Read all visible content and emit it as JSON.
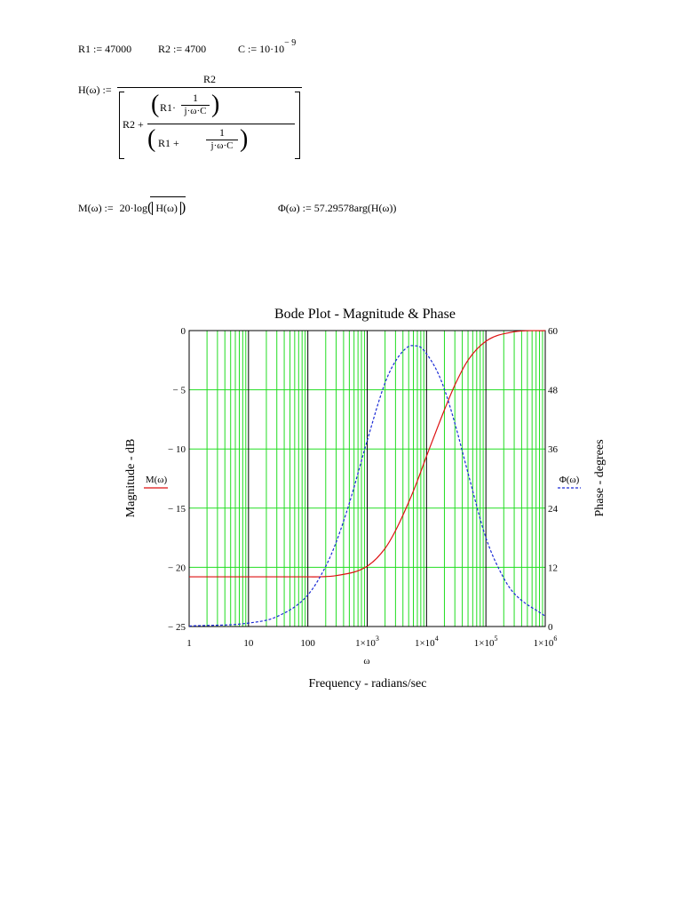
{
  "equations": {
    "r1_def": "R1 := 47000",
    "r2_def": "R2 := 4700",
    "c_def": "C := 10·10",
    "c_exp": "− 9",
    "h_lhs": "H(ω) :=",
    "h_num": "R2",
    "h_den_prefix": "R2 +",
    "h_r1": "R1·",
    "h_one": "1",
    "h_jwc": "j·ω·C",
    "h_r1_plus": "R1 +",
    "m_lhs": "M(ω) :=",
    "m_rhs_pre": "20·log",
    "m_arg": "H(ω)",
    "phi_def": "Φ(ω) := 57.29578arg(H(ω))"
  },
  "chart_data": {
    "type": "line",
    "title": "Bode Plot - Magnitude & Phase",
    "xlabel": "Frequency - radians/sec",
    "x_var": "ω",
    "ylabel_left": "Magnitude - dB",
    "ylabel_right": "Phase - degrees",
    "x_scale": "log",
    "xlim": [
      1,
      1000000
    ],
    "ylim_left": [
      -25,
      0
    ],
    "ylim_right": [
      0,
      60
    ],
    "x_ticks": [
      {
        "base": "1",
        "exp": ""
      },
      {
        "base": "10",
        "exp": ""
      },
      {
        "base": "100",
        "exp": ""
      },
      {
        "base": "1×10",
        "exp": "3"
      },
      {
        "base": "1×10",
        "exp": "4"
      },
      {
        "base": "1×10",
        "exp": "5"
      },
      {
        "base": "1×10",
        "exp": "6"
      }
    ],
    "y_ticks_left": [
      "0",
      "− 5",
      "− 10",
      "− 15",
      "− 20",
      "− 25"
    ],
    "y_ticks_right": [
      "60",
      "48",
      "36",
      "24",
      "12",
      "0"
    ],
    "grid": true,
    "series": [
      {
        "name": "M(ω)",
        "axis": "left",
        "color": "#dd1111",
        "dash": false,
        "x": [
          1,
          10,
          100,
          300,
          1000,
          2000,
          3000,
          5000,
          7000,
          10000,
          15000,
          20000,
          30000,
          50000,
          100000,
          300000,
          1000000
        ],
        "y": [
          -20.8,
          -20.8,
          -20.8,
          -20.7,
          -19.9,
          -18.4,
          -16.9,
          -14.5,
          -12.7,
          -10.6,
          -8.3,
          -6.7,
          -4.6,
          -2.5,
          -0.9,
          -0.1,
          0.0
        ]
      },
      {
        "name": "Φ(ω)",
        "axis": "right",
        "color": "#1a2ad6",
        "dash": true,
        "x": [
          1,
          10,
          30,
          100,
          200,
          300,
          500,
          1000,
          2000,
          3000,
          5000,
          6700,
          8000,
          10000,
          15000,
          20000,
          30000,
          50000,
          100000,
          200000,
          300000,
          1000000
        ],
        "y": [
          0.1,
          0.7,
          2.0,
          6.4,
          12.2,
          17.1,
          25.0,
          37.7,
          49.4,
          53.8,
          56.8,
          56.9,
          56.6,
          55.3,
          51.8,
          48.1,
          41.2,
          31.1,
          18.0,
          9.8,
          6.7,
          2.1
        ]
      }
    ]
  }
}
